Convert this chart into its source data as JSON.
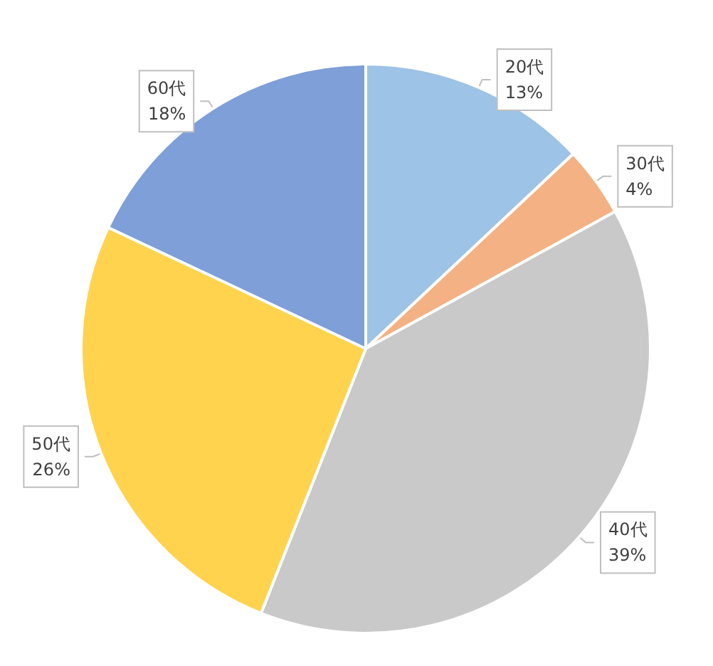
{
  "chart_data": {
    "type": "pie",
    "categories": [
      "20代",
      "30代",
      "40代",
      "50代",
      "60代"
    ],
    "values": [
      13,
      4,
      39,
      26,
      18
    ],
    "value_labels": [
      "13%",
      "4%",
      "39%",
      "26%",
      "18%"
    ],
    "colors": [
      "#9dc3e6",
      "#f4b183",
      "#c9c9c9",
      "#ffd34d",
      "#7f9fd8"
    ],
    "legend": false
  }
}
